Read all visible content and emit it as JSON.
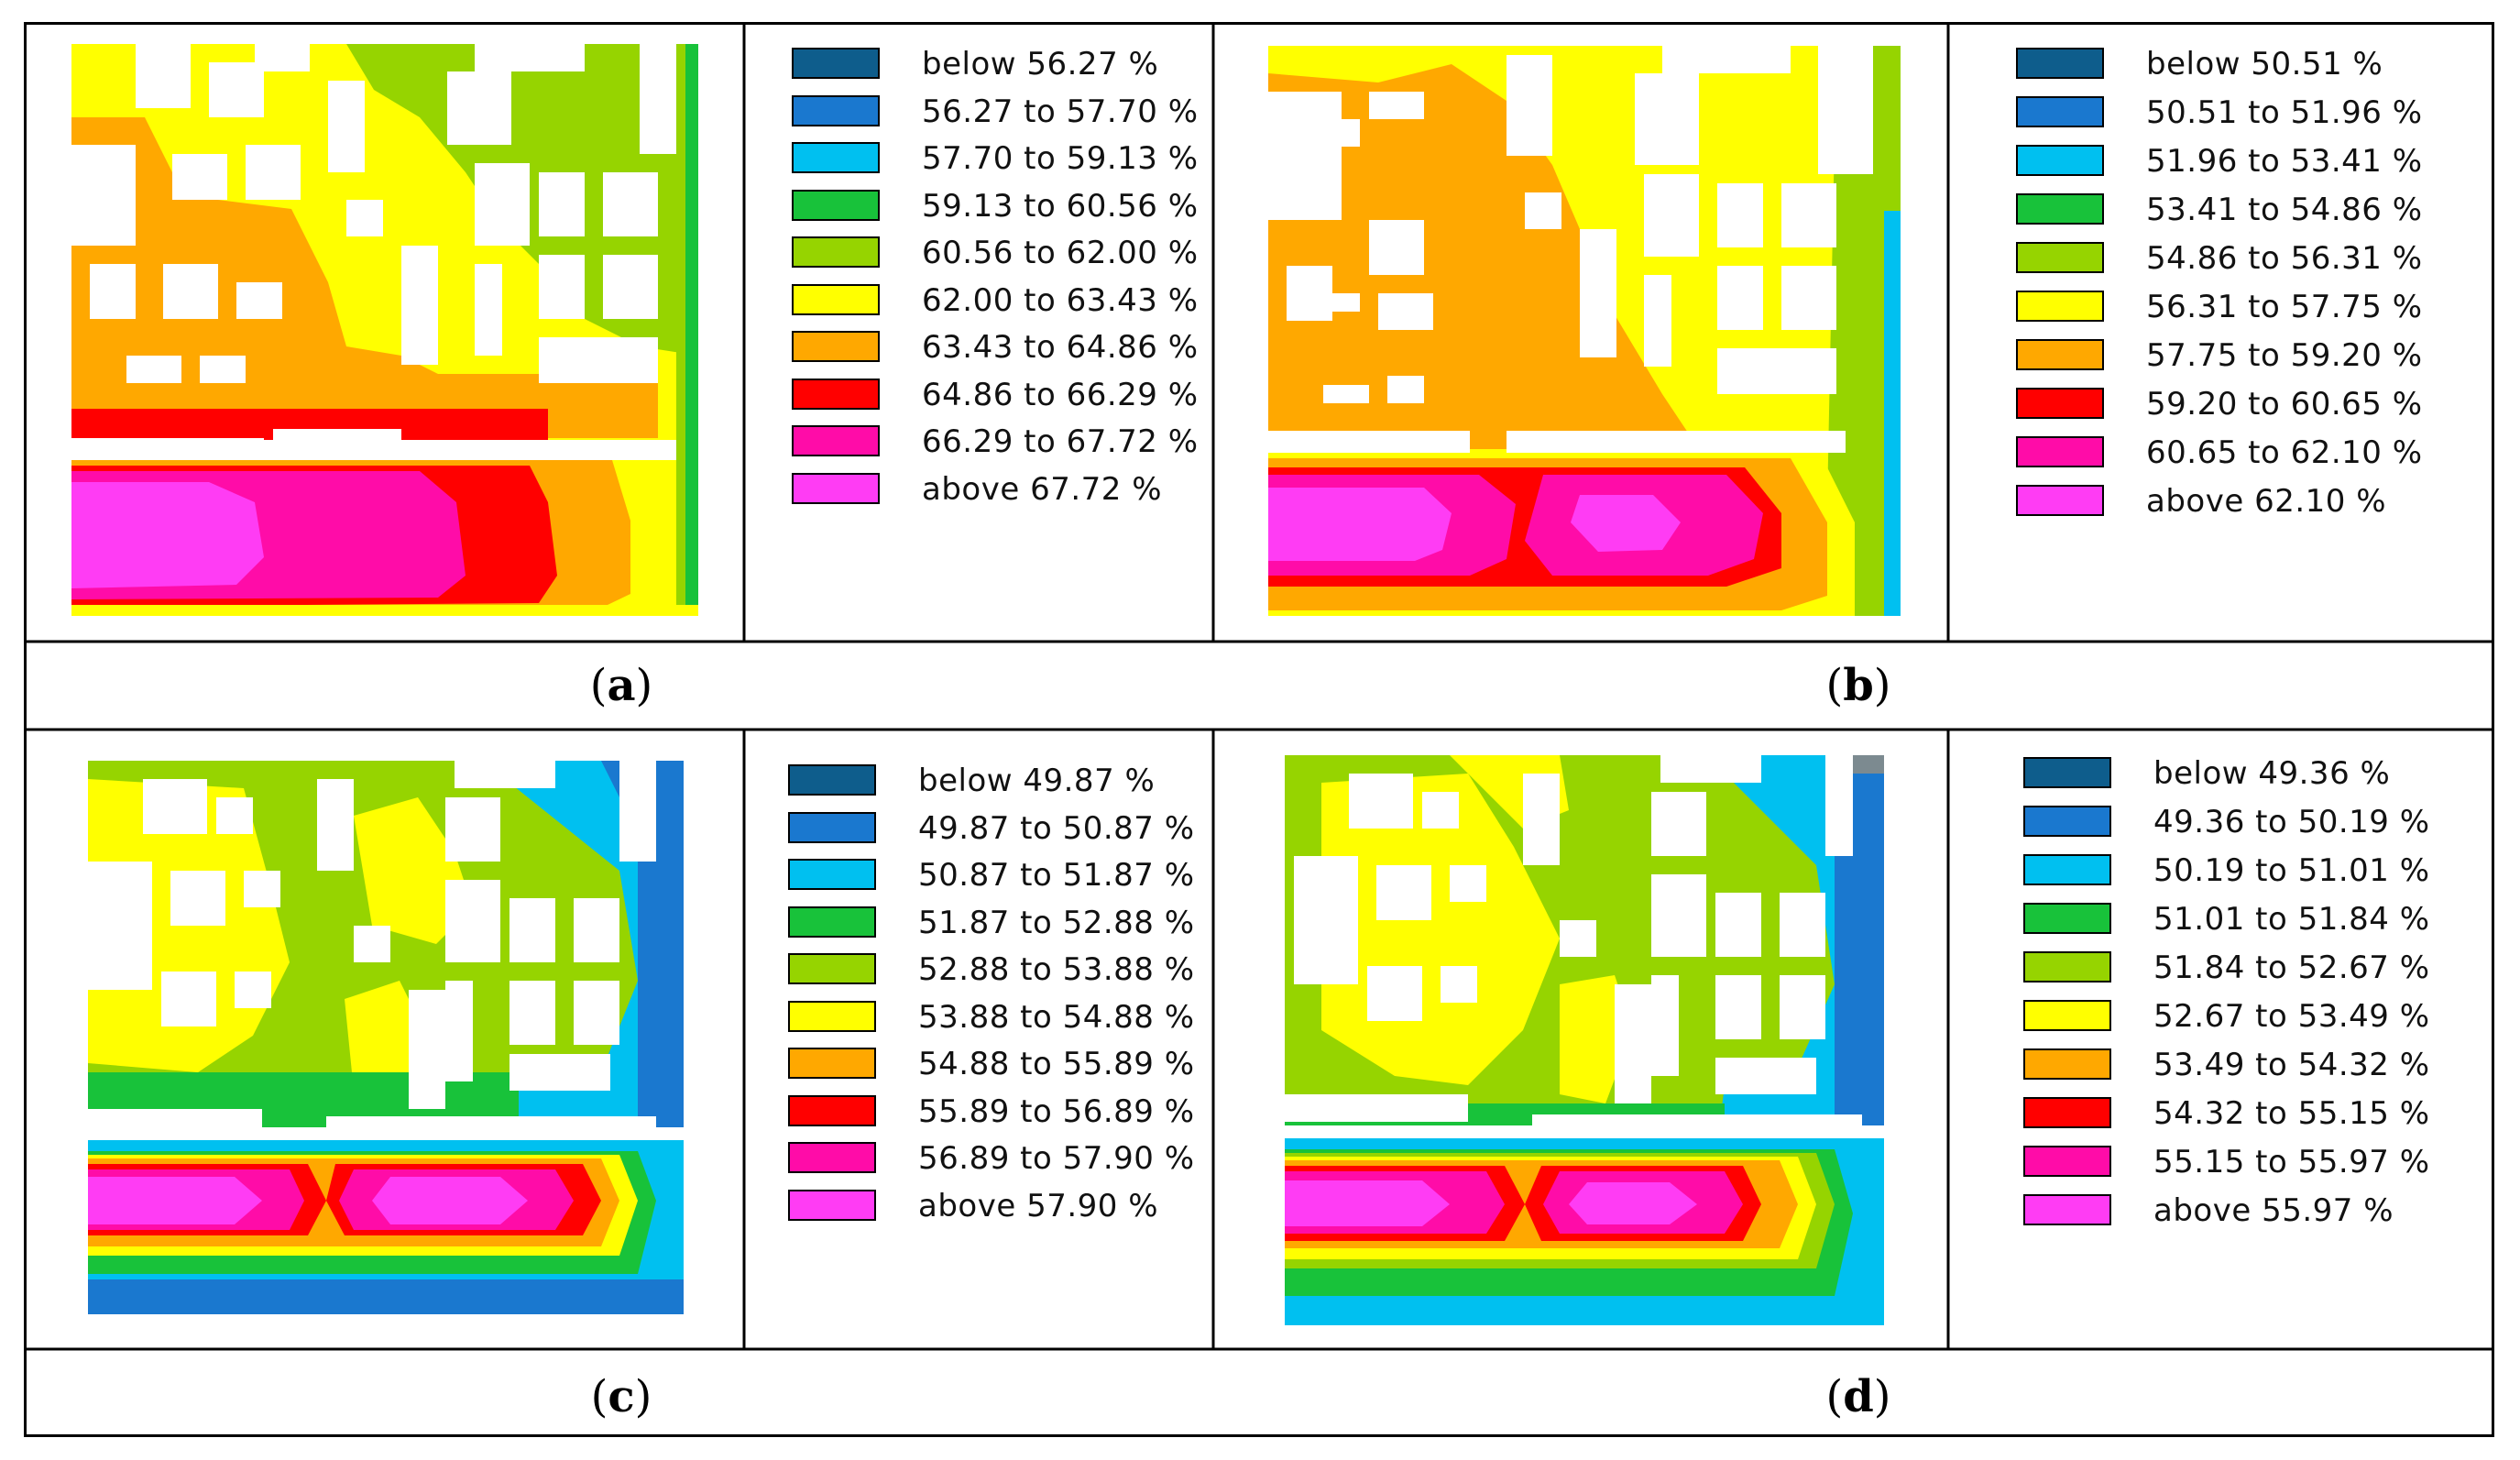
{
  "colors": [
    "#0e5d8c",
    "#1a78cf",
    "#00c0f0",
    "#18c23a",
    "#96d400",
    "#ffff00",
    "#ffa800",
    "#ff0000",
    "#ff0ca8",
    "#ff3cf4"
  ],
  "panels": [
    {
      "label": "a",
      "legend": [
        "below 56.27 %",
        "56.27 to 57.70 %",
        "57.70 to 59.13 %",
        "59.13 to 60.56 %",
        "60.56 to 62.00 %",
        "62.00 to 63.43 %",
        "63.43 to 64.86 %",
        "64.86 to 66.29 %",
        "66.29 to 67.72 %",
        "above 67.72 %"
      ]
    },
    {
      "label": "b",
      "legend": [
        "below 50.51 %",
        "50.51 to 51.96 %",
        "51.96 to 53.41 %",
        "53.41 to 54.86 %",
        "54.86 to 56.31 %",
        "56.31 to 57.75 %",
        "57.75 to 59.20 %",
        "59.20 to 60.65 %",
        "60.65 to 62.10 %",
        "above 62.10 %"
      ]
    },
    {
      "label": "c",
      "legend": [
        "below 49.87 %",
        "49.87 to 50.87 %",
        "50.87 to 51.87 %",
        "51.87 to 52.88 %",
        "52.88 to 53.88 %",
        "53.88 to 54.88 %",
        "54.88 to 55.89 %",
        "55.89 to 56.89 %",
        "56.89 to 57.90 %",
        "above 57.90 %"
      ]
    },
    {
      "label": "d",
      "legend": [
        "below 49.36 %",
        "49.36 to 50.19 %",
        "50.19 to 51.01 %",
        "51.01 to 51.84 %",
        "51.84 to 52.67 %",
        "52.67 to 53.49 %",
        "53.49 to 54.32 %",
        "54.32 to 55.15 %",
        "55.15 to 55.97 %",
        "above 55.97 %"
      ]
    }
  ]
}
